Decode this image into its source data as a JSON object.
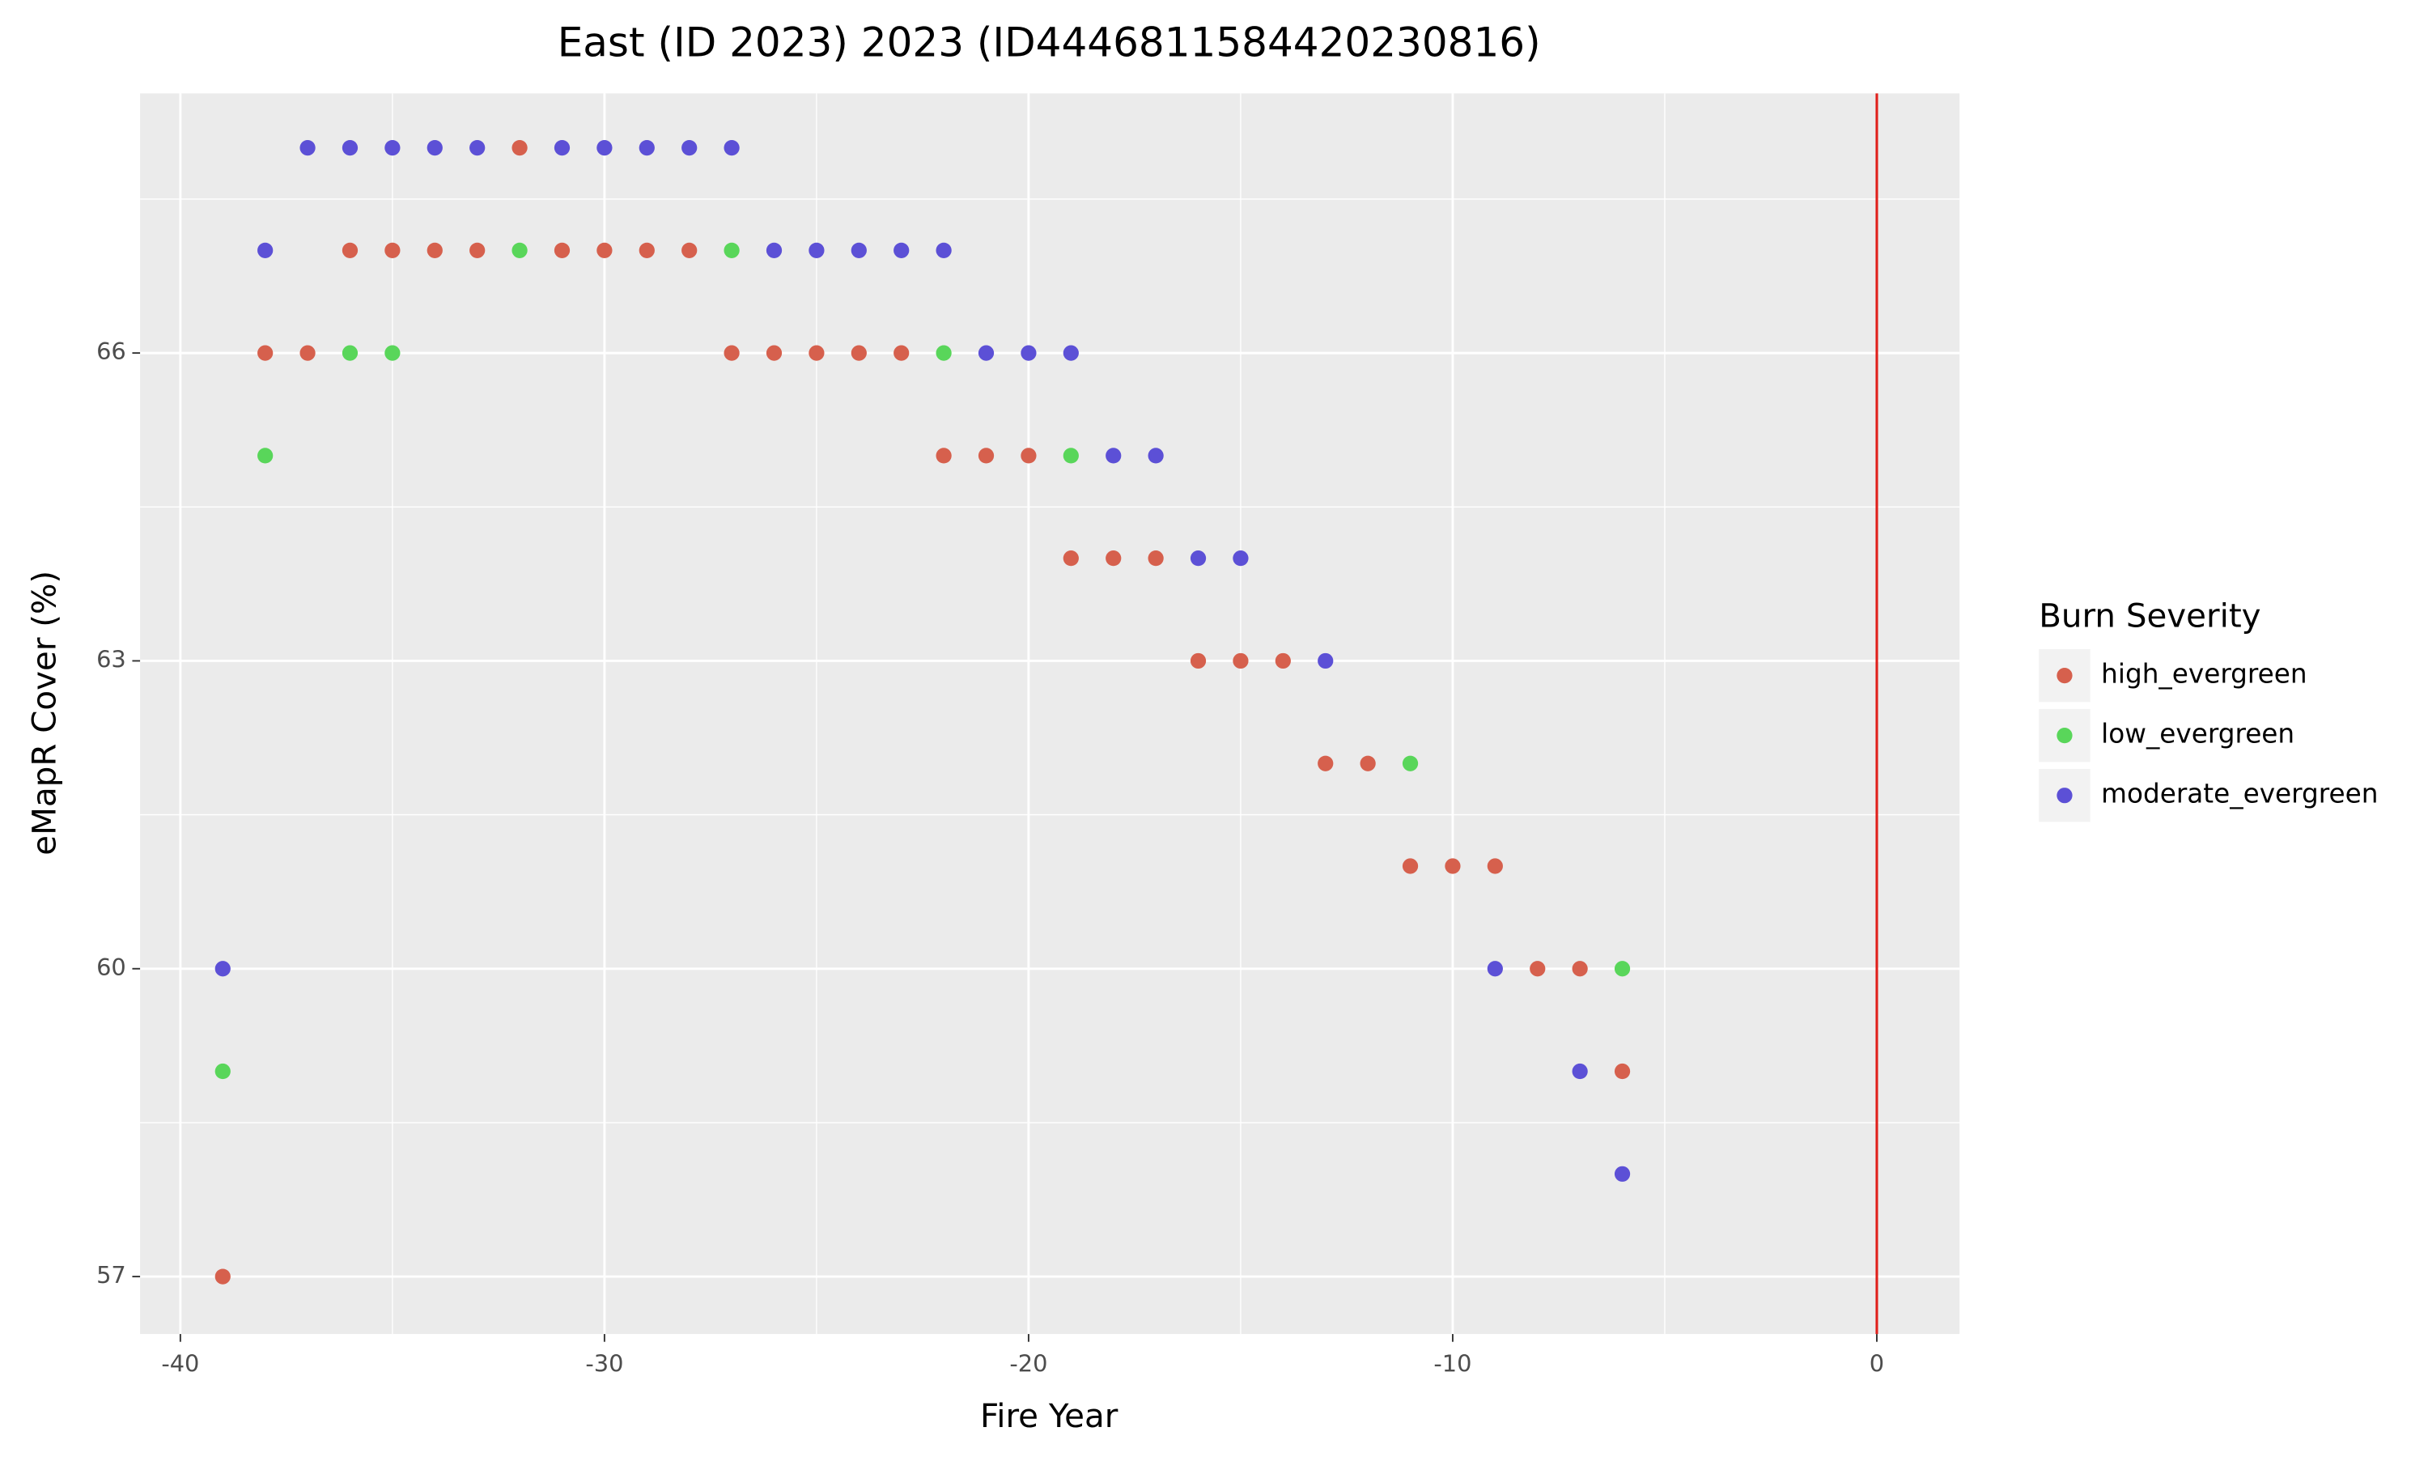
{
  "chart_data": {
    "type": "scatter",
    "title": "East (ID 2023) 2023 (ID444681158442023081​6)",
    "x_label": "Fire Year",
    "y_label": "eMapR Cover (%)",
    "legend_title": "Burn Severity",
    "legend_position": "right",
    "xlim": [
      -40.95,
      1.95
    ],
    "ylim": [
      56.44,
      68.53
    ],
    "xticks": [
      -40,
      -30,
      -20,
      -10,
      0
    ],
    "yticks": [
      57,
      60,
      63,
      66
    ],
    "minor_xticks": [
      -35,
      -25,
      -15,
      -5
    ],
    "minor_yticks": [
      58.5,
      61.5,
      64.5,
      67.5
    ],
    "grid": true,
    "vline": 0,
    "vline_color": "#e0201b",
    "series": [
      {
        "name": "high_evergreen",
        "color": "#d6604d",
        "x": [
          -32,
          -36,
          -35,
          -34,
          -33,
          -31,
          -30,
          -29,
          -28,
          -38,
          -37,
          -27,
          -26,
          -25,
          -24,
          -23,
          -22,
          -21,
          -20,
          -19,
          -18,
          -17,
          -16,
          -15,
          -14,
          -13,
          -12,
          -11,
          -10,
          -9,
          -8,
          -7,
          -6,
          -39
        ],
        "y": [
          68,
          67,
          67,
          67,
          67,
          67,
          67,
          67,
          67,
          66,
          66,
          66,
          66,
          66,
          66,
          66,
          65,
          65,
          65,
          64,
          64,
          64,
          63,
          63,
          63,
          62,
          62,
          61,
          61,
          61,
          60,
          60,
          59,
          57
        ]
      },
      {
        "name": "low_evergreen",
        "color": "#59d65a",
        "x": [
          -32,
          -27,
          -36,
          -35,
          -22,
          -38,
          -19,
          -11,
          -6,
          -39
        ],
        "y": [
          67,
          67,
          66,
          66,
          66,
          65,
          65,
          62,
          60,
          59
        ]
      },
      {
        "name": "moderate_evergreen",
        "color": "#5c50d6",
        "x": [
          -37,
          -36,
          -35,
          -34,
          -33,
          -31,
          -30,
          -29,
          -28,
          -27,
          -38,
          -26,
          -25,
          -24,
          -23,
          -22,
          -21,
          -20,
          -19,
          -18,
          -17,
          -16,
          -15,
          -13,
          -39,
          -9,
          -7,
          -6
        ],
        "y": [
          68,
          68,
          68,
          68,
          68,
          68,
          68,
          68,
          68,
          68,
          67,
          67,
          67,
          67,
          67,
          67,
          66,
          66,
          66,
          65,
          65,
          64,
          64,
          63,
          60,
          60,
          59,
          58
        ]
      }
    ]
  }
}
